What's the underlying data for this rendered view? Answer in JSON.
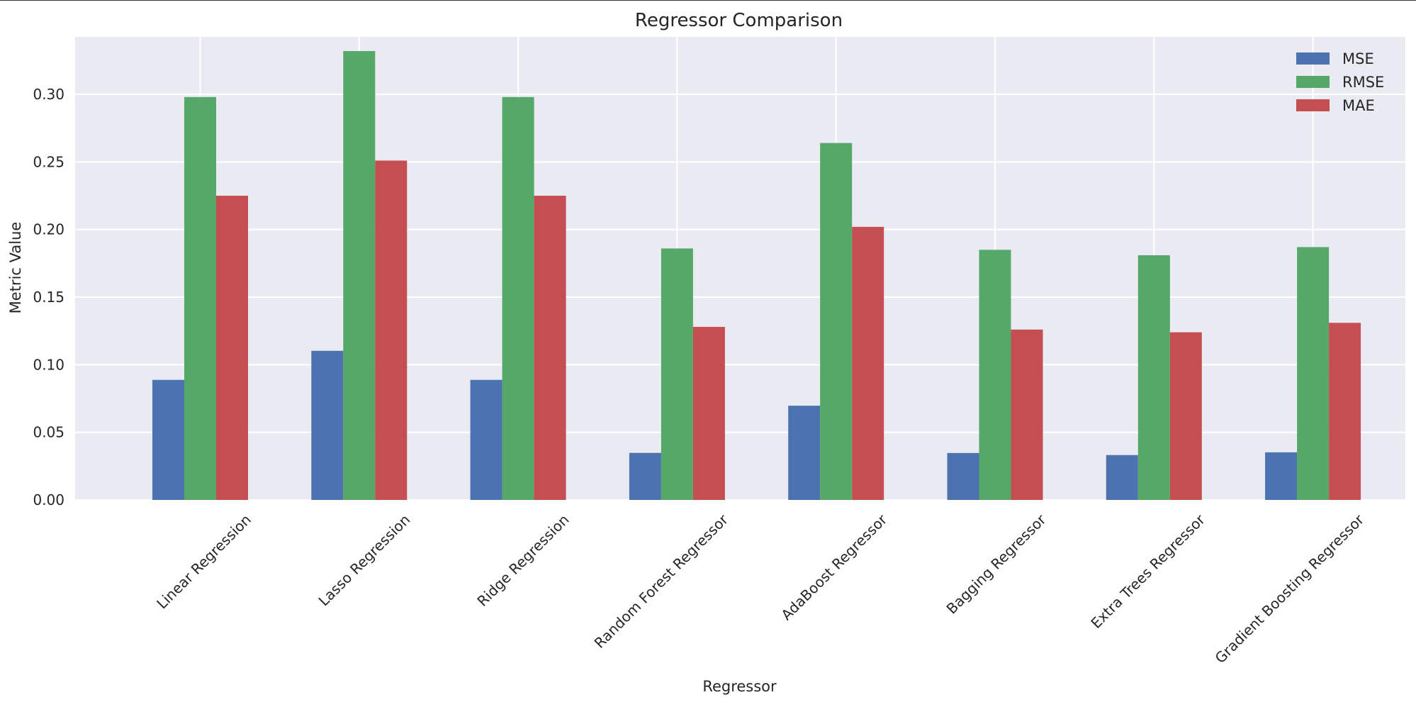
{
  "chart_data": {
    "type": "bar",
    "title": "Regressor Comparison",
    "xlabel": "Regressor",
    "ylabel": "Metric Value",
    "categories": [
      "Linear Regression",
      "Lasso Regression",
      "Ridge Regression",
      "Random Forest Regressor",
      "AdaBoost Regressor",
      "Bagging Regressor",
      "Extra Trees Regressor",
      "Gradient Boosting Regressor"
    ],
    "series": [
      {
        "name": "MSE",
        "color": "#4c72b0",
        "values": [
          0.0888,
          0.1103,
          0.0888,
          0.0348,
          0.0697,
          0.0347,
          0.0332,
          0.0352
        ]
      },
      {
        "name": "RMSE",
        "color": "#55a868",
        "values": [
          0.298,
          0.332,
          0.298,
          0.186,
          0.264,
          0.185,
          0.181,
          0.187
        ]
      },
      {
        "name": "MAE",
        "color": "#c44e52",
        "values": [
          0.225,
          0.251,
          0.225,
          0.128,
          0.202,
          0.126,
          0.124,
          0.131
        ]
      }
    ],
    "ylim": [
      0,
      0.3425
    ],
    "yticks": [
      "0.00",
      "0.05",
      "0.10",
      "0.15",
      "0.20",
      "0.25",
      "0.30"
    ],
    "ytick_values": [
      0,
      0.05,
      0.1,
      0.15,
      0.2,
      0.25,
      0.3
    ],
    "grid": true,
    "legend_position": "top-right",
    "xtick_rotation": 45,
    "style": {
      "plot_background": "#eaeaf2",
      "grid_color": "#ffffff",
      "text_color": "#262626"
    }
  }
}
